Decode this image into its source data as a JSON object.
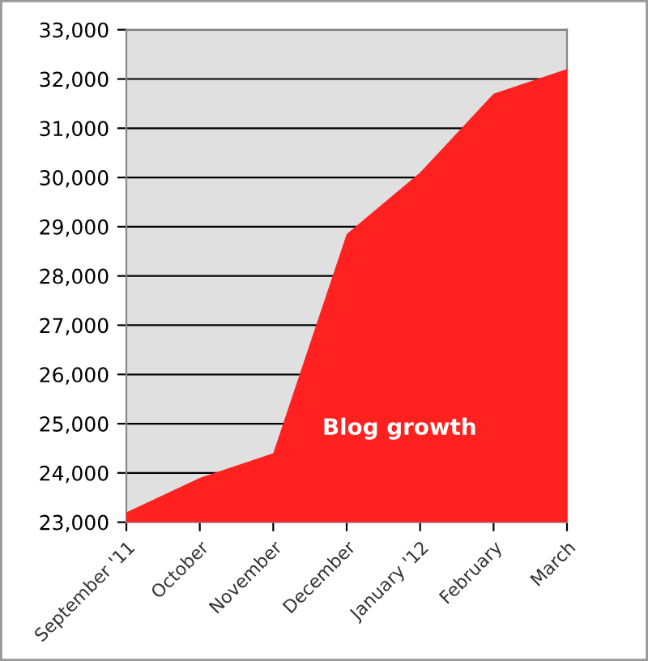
{
  "chart_data": {
    "type": "area",
    "title": "Blog growth",
    "categories": [
      "September '11",
      "October",
      "November",
      "December",
      "January '12",
      "February",
      "March"
    ],
    "series": [
      {
        "color": "#ff2020",
        "values": [
          23200,
          23900,
          24400,
          28850,
          30100,
          31700,
          32200
        ]
      }
    ],
    "ylim": [
      23000,
      33000
    ],
    "yticks": [
      {
        "value": 23000,
        "label": "23,000"
      },
      {
        "value": 24000,
        "label": "24,000"
      },
      {
        "value": 25000,
        "label": "25,000"
      },
      {
        "value": 26000,
        "label": "26,000"
      },
      {
        "value": 27000,
        "label": "27,000"
      },
      {
        "value": 28000,
        "label": "28,000"
      },
      {
        "value": 29000,
        "label": "29,000"
      },
      {
        "value": 30000,
        "label": "30,000"
      },
      {
        "value": 31000,
        "label": "31,000"
      },
      {
        "value": 32000,
        "label": "32,000"
      },
      {
        "value": 33000,
        "label": "33,000"
      }
    ],
    "grid": "y",
    "legend": false
  }
}
